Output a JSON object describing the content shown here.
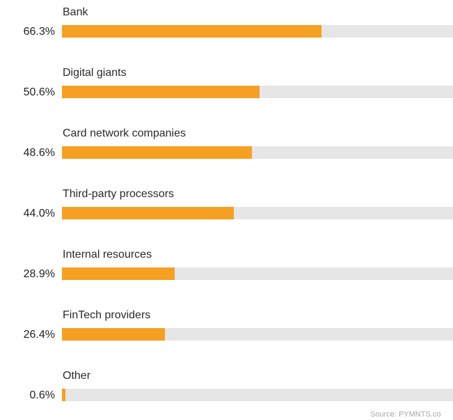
{
  "chart_data": {
    "type": "bar",
    "orientation": "horizontal",
    "categories": [
      "Bank",
      "Digital giants",
      "Card network companies",
      "Third-party processors",
      "Internal resources",
      "FinTech providers",
      "Other"
    ],
    "values": [
      66.3,
      50.6,
      48.6,
      44.0,
      28.9,
      26.4,
      0.6
    ],
    "value_labels": [
      "66.3%",
      "50.6%",
      "48.6%",
      "44.0%",
      "28.9%",
      "26.4%",
      "0.6%"
    ],
    "xlim": [
      0,
      100
    ],
    "grid": false,
    "colors": {
      "bar": "#f5a023",
      "track": "#e6e6e6"
    }
  },
  "source": "Source: PYMNTS.co"
}
